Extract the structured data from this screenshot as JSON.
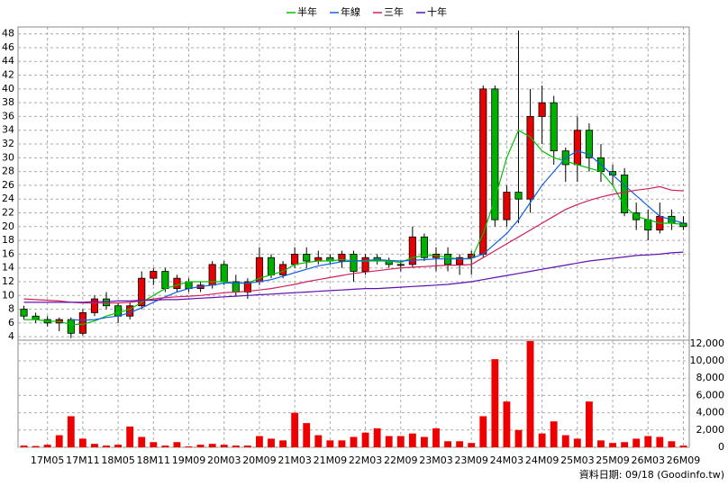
{
  "chart_data": {
    "type": "candlestick",
    "categories": [
      null,
      null,
      "17M05",
      null,
      null,
      "17M11",
      null,
      null,
      "18M05",
      null,
      null,
      "18M11",
      null,
      null,
      "19M09",
      null,
      null,
      "20M03",
      null,
      null,
      "20M09",
      null,
      null,
      "21M03",
      null,
      null,
      "21M09",
      null,
      null,
      "22M03",
      null,
      null,
      "22M09",
      null,
      null,
      "23M03",
      null,
      null,
      "23M09",
      null,
      null,
      "24M03",
      null,
      null,
      "24M09",
      null,
      null,
      "25M03",
      null,
      null,
      "25M09",
      null,
      null,
      "26M03",
      null,
      null,
      "26M09"
    ],
    "open": [
      8,
      7,
      6.5,
      6,
      6.5,
      4.5,
      7.5,
      9.5,
      8.5,
      7,
      8.5,
      12.5,
      13.5,
      11,
      12,
      11,
      11.5,
      14.5,
      12,
      10.5,
      12,
      15.5,
      13,
      14.5,
      16,
      15,
      15.5,
      15,
      16,
      13.5,
      15.5,
      15,
      14.5,
      14.5,
      18.5,
      15.5,
      16,
      14.5,
      15.5,
      16,
      40,
      21,
      25,
      24,
      36,
      38,
      31,
      29,
      34,
      30,
      28,
      27.5,
      22,
      21,
      19.5,
      21.5,
      20.5
    ],
    "high": [
      8.5,
      7.5,
      7,
      6.8,
      6.8,
      8,
      10,
      10.5,
      9,
      9,
      13.5,
      14,
      14,
      13,
      12.5,
      12,
      15,
      15,
      13,
      12.5,
      17,
      16,
      15,
      17,
      17,
      16.5,
      16,
      16.5,
      16.5,
      16,
      16,
      15.5,
      15,
      20,
      19,
      17,
      17,
      16,
      16.5,
      40.5,
      40.5,
      26,
      48.5,
      40,
      40.5,
      39,
      31.5,
      36,
      35,
      32,
      29,
      28.5,
      23.5,
      22.5,
      23.5,
      22.5,
      21.5
    ],
    "low": [
      6.5,
      6,
      5.5,
      4.8,
      3.8,
      4.2,
      7,
      8,
      6,
      6.5,
      8,
      11.5,
      10.5,
      10.5,
      10.5,
      10.5,
      11,
      11.5,
      10,
      9.5,
      11.5,
      12.5,
      12.5,
      14,
      14,
      14.5,
      14.5,
      14,
      12,
      13,
      14.5,
      14,
      13.5,
      14,
      15,
      13.5,
      13.5,
      13,
      13,
      15.5,
      20,
      20,
      20.5,
      22,
      32,
      29,
      26.5,
      26.5,
      28,
      26.5,
      26,
      21.5,
      19.5,
      18,
      19,
      19.5,
      19.5
    ],
    "close": [
      7,
      6.5,
      6,
      6.5,
      4.5,
      7.5,
      9.5,
      8.5,
      7,
      8.5,
      12.5,
      13.5,
      11,
      12.5,
      11,
      11.5,
      14.5,
      12,
      10.5,
      12,
      15.5,
      13,
      14.5,
      16,
      15,
      15.5,
      15,
      16,
      13.5,
      15.5,
      15,
      14.5,
      14.5,
      18.5,
      15.5,
      16,
      14.5,
      15.5,
      16,
      40,
      21,
      25,
      24,
      36,
      38,
      31,
      29,
      34,
      30,
      28,
      27.5,
      22,
      21,
      19.5,
      21.5,
      20.5,
      20
    ],
    "up_color": "#e60000",
    "down_color": "#00b000",
    "ylim": [
      3.5,
      49
    ],
    "yticks": [
      4,
      6,
      8,
      10,
      12,
      14,
      16,
      18,
      20,
      22,
      24,
      26,
      28,
      30,
      32,
      34,
      36,
      38,
      40,
      42,
      44,
      46,
      48
    ],
    "grid": true,
    "series": [
      {
        "name": "半年",
        "color": "#00c000",
        "values": [
          6.5,
          6.5,
          6.3,
          6.2,
          5.8,
          5.8,
          6.3,
          7,
          7.5,
          8,
          9,
          10,
          11,
          11.5,
          12,
          12,
          12,
          12,
          11.8,
          11.8,
          12.5,
          13,
          13.5,
          14.5,
          14.8,
          15,
          15,
          15.2,
          15,
          15,
          15,
          15,
          14.8,
          15.5,
          15.8,
          15.8,
          15.5,
          15.3,
          15.3,
          19,
          24,
          30,
          34,
          33,
          31,
          30,
          29.5,
          29,
          28.5,
          28,
          26,
          23,
          21.5,
          21,
          20.5,
          20.5,
          20.3
        ]
      },
      {
        "name": "年線",
        "color": "#1060e0",
        "values": [
          null,
          null,
          null,
          null,
          6.5,
          6.4,
          6.5,
          6.8,
          7,
          7.5,
          8.2,
          9,
          9.8,
          10.5,
          11,
          11.3,
          11.5,
          11.8,
          11.8,
          11.8,
          12,
          12.3,
          12.8,
          13.3,
          13.8,
          14.3,
          14.6,
          14.9,
          15,
          15.1,
          15.2,
          15.1,
          15,
          15.1,
          15.2,
          15.3,
          15.3,
          15.3,
          15.4,
          16,
          17.5,
          19,
          21,
          23.5,
          26,
          28,
          30,
          31,
          30.5,
          29,
          27.5,
          26,
          24.5,
          23,
          21.5,
          21,
          20.5
        ]
      },
      {
        "name": "三年",
        "color": "#d0205a",
        "values": [
          9.5,
          9.4,
          9.3,
          9.2,
          9,
          8.9,
          8.9,
          8.9,
          8.9,
          9,
          9.2,
          9.5,
          9.7,
          9.8,
          9.9,
          10,
          10.2,
          10.4,
          10.5,
          10.6,
          10.8,
          11,
          11.3,
          11.6,
          12,
          12.3,
          12.6,
          12.9,
          13.2,
          13.4,
          13.6,
          13.8,
          14,
          14.1,
          14.2,
          14.3,
          14.4,
          14.4,
          14.5,
          15.5,
          16.5,
          17.5,
          18.5,
          19.5,
          20.5,
          21.5,
          22.5,
          23.2,
          23.8,
          24.3,
          24.7,
          25,
          25.3,
          25.5,
          25.8,
          25.3,
          25.2
        ]
      },
      {
        "name": "十年",
        "color": "#6010b0",
        "values": [
          9,
          9,
          9,
          9,
          9,
          9,
          9.1,
          9.1,
          9.2,
          9.2,
          9.3,
          9.3,
          9.4,
          9.4,
          9.5,
          9.6,
          9.7,
          9.8,
          9.9,
          10,
          10.1,
          10.2,
          10.3,
          10.4,
          10.5,
          10.6,
          10.7,
          10.8,
          10.9,
          11,
          11,
          11.1,
          11.2,
          11.3,
          11.4,
          11.5,
          11.6,
          11.8,
          12,
          12.3,
          12.6,
          12.9,
          13.2,
          13.5,
          13.8,
          14.1,
          14.4,
          14.7,
          15,
          15.2,
          15.4,
          15.6,
          15.8,
          15.9,
          16,
          16.2,
          16.3
        ]
      }
    ],
    "volume": {
      "color": "#ee0000",
      "values": [
        200,
        150,
        300,
        1400,
        3600,
        1000,
        400,
        200,
        300,
        2400,
        1200,
        600,
        200,
        600,
        100,
        300,
        400,
        300,
        200,
        200,
        1300,
        1000,
        800,
        4000,
        2800,
        1400,
        800,
        800,
        1200,
        1700,
        2200,
        1300,
        1300,
        1600,
        1200,
        2200,
        700,
        700,
        500,
        3600,
        10200,
        5300,
        2000,
        12300,
        1600,
        3000,
        1400,
        1000,
        5300,
        800,
        500,
        600,
        1000,
        1300,
        1200,
        700,
        200
      ],
      "y2lim": [
        0,
        12400
      ],
      "y2ticks": [
        0,
        {
          "value": 2000,
          "label": "2,000"
        },
        {
          "value": 4000,
          "label": "4,000"
        },
        {
          "value": 6000,
          "label": "6,000"
        },
        {
          "value": 8000,
          "label": "8,000"
        },
        {
          "value": 10000,
          "label": "10,000"
        },
        {
          "value": 12000,
          "label": "12,000"
        }
      ]
    },
    "source": "資料日期: 09/18 (Goodinfo.tw)"
  }
}
